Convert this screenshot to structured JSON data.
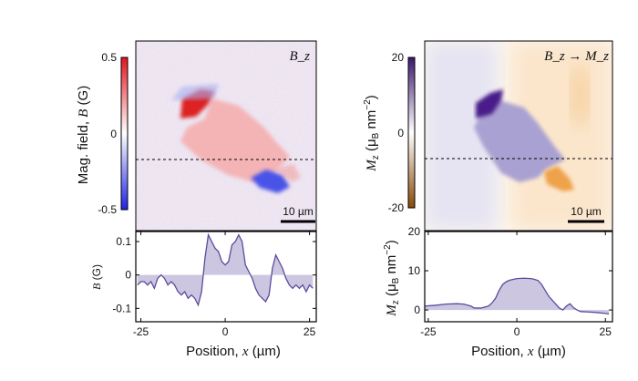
{
  "chart_data": [
    {
      "type": "heatmap",
      "title": "B_z",
      "title_main": "B",
      "title_sub": "z",
      "colorbar": {
        "label": "Mag. field, B (G)",
        "label_prefix": "Mag. field, ",
        "label_var": "B",
        "label_unit": " (G)",
        "range": [
          -0.5,
          0.5
        ],
        "ticks": [
          "0.5",
          "0",
          "-0.5"
        ],
        "colors": [
          "#1e22e6",
          "#ffffff",
          "#e6141e"
        ]
      },
      "scale_bar": "10 µm",
      "cut_line": "dashed horizontal"
    },
    {
      "type": "heatmap",
      "title": "B_z → M_z",
      "title_parts": [
        "B",
        "z",
        "→",
        "M",
        "z"
      ],
      "colorbar": {
        "label": "M_z (µB nm^-2)",
        "label_var": "M",
        "label_sub": "z",
        "label_unit": " (μ",
        "label_unit_sub": "B",
        "label_unit_rest": " nm",
        "label_unit_sup": "−2",
        "label_close": ")",
        "range": [
          -20,
          20
        ],
        "ticks": [
          "20",
          "0",
          "-20"
        ],
        "colors": [
          "#8a4a05",
          "#ffffff",
          "#3b1670"
        ]
      },
      "scale_bar": "10 µm",
      "cut_line": "dashed horizontal"
    },
    {
      "type": "area",
      "xlabel": "Position, x (µm)",
      "xlabel_prefix": "Position, ",
      "xlabel_var": "x",
      "xlabel_unit": " (µm)",
      "ylabel": "B (G)",
      "ylabel_var": "B",
      "ylabel_unit": " (G)",
      "xlim": [
        -26.5,
        27
      ],
      "ylim": [
        -0.14,
        0.13
      ],
      "xticks": [
        -25,
        0,
        25
      ],
      "yticks": [
        0.1,
        0,
        -0.1
      ],
      "ytick_labels": [
        "0.1",
        "0",
        "-0.1"
      ],
      "color": "#5b4b9e",
      "fill": "#cdc6e0",
      "x": [
        -26,
        -25,
        -24,
        -23,
        -22,
        -21,
        -20,
        -19,
        -18,
        -17,
        -16,
        -15,
        -14,
        -13,
        -12,
        -11,
        -10,
        -9,
        -8,
        -7,
        -6,
        -5,
        -4,
        -3,
        -2,
        -1,
        0,
        1,
        2,
        3,
        4,
        5,
        6,
        7,
        8,
        9,
        10,
        11,
        12,
        13,
        14,
        15,
        16,
        17,
        18,
        19,
        20,
        21,
        22,
        23,
        24,
        25,
        26
      ],
      "y": [
        -0.03,
        -0.02,
        -0.02,
        -0.03,
        -0.02,
        -0.04,
        -0.01,
        0.0,
        -0.01,
        -0.03,
        -0.02,
        -0.03,
        -0.05,
        -0.06,
        -0.05,
        -0.07,
        -0.06,
        -0.07,
        -0.09,
        -0.05,
        0.05,
        0.12,
        0.1,
        0.08,
        0.07,
        0.04,
        0.03,
        0.04,
        0.09,
        0.1,
        0.12,
        0.1,
        0.03,
        0.01,
        -0.01,
        -0.04,
        -0.06,
        -0.07,
        -0.08,
        -0.06,
        0.02,
        0.06,
        0.04,
        0.02,
        -0.01,
        -0.03,
        -0.04,
        -0.03,
        -0.04,
        -0.03,
        -0.05,
        -0.03,
        -0.04
      ]
    },
    {
      "type": "area",
      "xlabel": "Position, x (µm)",
      "xlabel_prefix": "Position, ",
      "xlabel_var": "x",
      "xlabel_unit": " (µm)",
      "ylabel": "M_z (µB nm^-2)",
      "xlim": [
        -26,
        27
      ],
      "ylim": [
        -3,
        20
      ],
      "xticks": [
        -25,
        0,
        25
      ],
      "yticks": [
        20,
        10,
        0
      ],
      "ytick_labels": [
        "20",
        "10",
        "0"
      ],
      "color": "#5b4b9e",
      "fill": "#cdc6e0",
      "x": [
        -26,
        -23,
        -20,
        -17,
        -15,
        -13,
        -12,
        -10,
        -8,
        -7,
        -6,
        -5,
        -4,
        -3,
        -2,
        0,
        2,
        4,
        5,
        6,
        7,
        8,
        9,
        10,
        11,
        12,
        13,
        14,
        15,
        16,
        17,
        18,
        20,
        22,
        24,
        26
      ],
      "y": [
        1,
        1.2,
        1.5,
        1.6,
        1.5,
        1,
        0.5,
        0.5,
        1,
        1.8,
        3,
        5,
        6.5,
        7.2,
        7.6,
        8,
        8.1,
        8,
        7.8,
        7.5,
        6.5,
        5,
        3.5,
        2.5,
        1.5,
        0.5,
        0,
        1,
        1.6,
        0.6,
        0,
        -0.4,
        -0.5,
        -0.6,
        -0.8,
        -1
      ]
    }
  ]
}
